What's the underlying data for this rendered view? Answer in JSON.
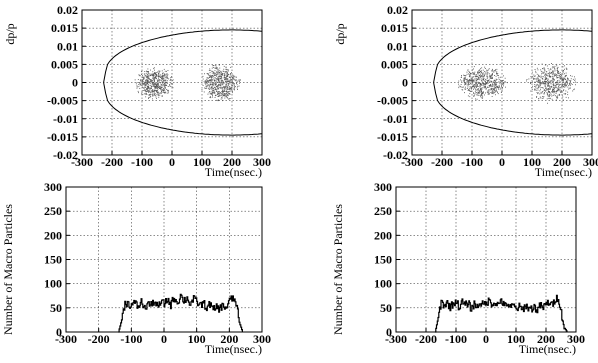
{
  "chart_data": [
    {
      "type": "scatter",
      "panel": "top-left",
      "xlabel": "Time(nsec.)",
      "ylabel": "dp/p",
      "xlim": [
        -300,
        300
      ],
      "ylim": [
        -0.02,
        0.02
      ],
      "x_ticks": [
        "-300",
        "-200",
        "-100",
        "0",
        "100",
        "200",
        "300"
      ],
      "y_ticks": [
        "-0.02",
        "-0.015",
        "-0.01",
        "-0.005",
        "0",
        "0.005",
        "0.01",
        "0.015",
        "0.02"
      ],
      "grid": true,
      "separatrix": {
        "x_min": -228,
        "x_max": 300,
        "dp_max": 0.0145
      },
      "bunch": {
        "x_min": -130,
        "x_max": 230,
        "dp_max": 0.0055,
        "centers": [
          -60,
          160
        ]
      }
    },
    {
      "type": "scatter",
      "panel": "top-right",
      "xlabel": "Time(nsec.)",
      "ylabel": "dp/p",
      "xlim": [
        -300,
        300
      ],
      "ylim": [
        -0.02,
        0.02
      ],
      "x_ticks": [
        "-300",
        "-200",
        "-100",
        "0",
        "100",
        "200",
        "300"
      ],
      "y_ticks": [
        "-0.02",
        "-0.015",
        "-0.01",
        "-0.005",
        "0",
        "0.005",
        "0.01",
        "0.015",
        "0.02"
      ],
      "grid": true,
      "separatrix": {
        "x_min": -228,
        "x_max": 300,
        "dp_max": 0.0145
      },
      "bunch": {
        "x_min": -160,
        "x_max": 255,
        "dp_max": 0.0058,
        "centers": [
          -70,
          165
        ]
      }
    },
    {
      "type": "line",
      "panel": "bottom-left",
      "xlabel": "Time(nsec.)",
      "ylabel": "Number of Macro Particles",
      "xlim": [
        -300,
        300
      ],
      "ylim": [
        0,
        300
      ],
      "x_ticks": [
        "-300",
        "-200",
        "-100",
        "0",
        "100",
        "200",
        "300"
      ],
      "y_ticks": [
        "0",
        "50",
        "100",
        "150",
        "200",
        "250",
        "300"
      ],
      "grid": true,
      "x": [
        -140,
        -130,
        -120,
        -110,
        -100,
        -90,
        -80,
        -70,
        -60,
        -50,
        -40,
        -30,
        -20,
        -10,
        0,
        10,
        20,
        30,
        40,
        50,
        60,
        70,
        80,
        90,
        100,
        110,
        120,
        130,
        140,
        150,
        160,
        170,
        180,
        190,
        200,
        210,
        220,
        230,
        240
      ],
      "values": [
        0,
        25,
        62,
        58,
        55,
        60,
        52,
        63,
        48,
        60,
        55,
        65,
        50,
        62,
        58,
        68,
        56,
        72,
        60,
        75,
        65,
        70,
        58,
        68,
        62,
        55,
        60,
        50,
        58,
        45,
        52,
        48,
        55,
        50,
        65,
        70,
        60,
        20,
        0
      ]
    },
    {
      "type": "line",
      "panel": "bottom-right",
      "xlabel": "Time(nsec.)",
      "ylabel": "Number of Macro Particles",
      "xlim": [
        -300,
        300
      ],
      "ylim": [
        0,
        300
      ],
      "x_ticks": [
        "-300",
        "-200",
        "-100",
        "0",
        "100",
        "200",
        "300"
      ],
      "y_ticks": [
        "0",
        "50",
        "100",
        "150",
        "200",
        "250",
        "300"
      ],
      "grid": true,
      "x": [
        -170,
        -160,
        -150,
        -140,
        -130,
        -120,
        -110,
        -100,
        -90,
        -80,
        -70,
        -60,
        -50,
        -40,
        -30,
        -20,
        -10,
        0,
        10,
        20,
        30,
        40,
        50,
        60,
        70,
        80,
        90,
        100,
        110,
        120,
        130,
        140,
        150,
        160,
        170,
        180,
        190,
        200,
        210,
        220,
        230,
        240,
        250,
        260,
        270
      ],
      "values": [
        0,
        30,
        62,
        55,
        60,
        52,
        58,
        65,
        50,
        62,
        55,
        60,
        48,
        58,
        52,
        62,
        55,
        60,
        65,
        58,
        62,
        55,
        68,
        52,
        60,
        50,
        55,
        48,
        52,
        45,
        55,
        50,
        48,
        52,
        45,
        55,
        50,
        58,
        62,
        55,
        68,
        72,
        40,
        10,
        0
      ]
    }
  ]
}
